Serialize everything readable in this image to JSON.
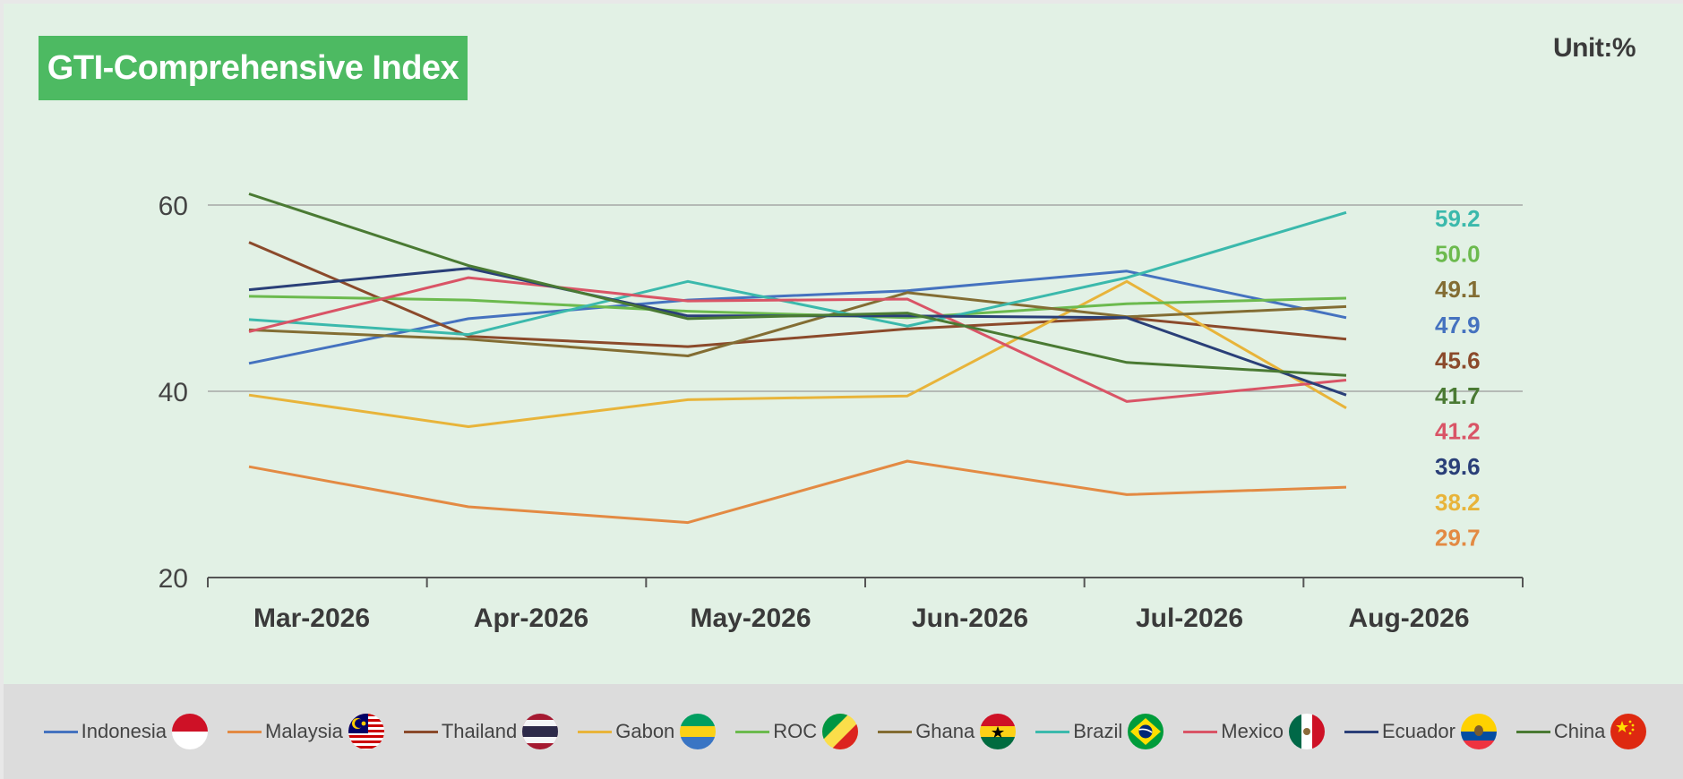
{
  "title": "GTI-Comprehensive Index",
  "unit": "Unit:%",
  "chart_data": {
    "type": "line",
    "title": "GTI-Comprehensive Index",
    "unit": "Unit:%",
    "xlabel": "",
    "ylabel": "",
    "categories": [
      "Mar-2026",
      "Apr-2026",
      "May-2026",
      "Jun-2026",
      "Jul-2026",
      "Aug-2026"
    ],
    "yticks": [
      20,
      40,
      60
    ],
    "ylim": [
      20,
      61
    ],
    "grid": "horizontal at 40 and 60",
    "legend_position": "bottom",
    "series": [
      {
        "name": "Indonesia",
        "color": "#4572bf",
        "values": [
          43.0,
          47.8,
          49.8,
          50.8,
          52.9,
          47.9
        ],
        "end_label": "47.9",
        "flag": "indonesia"
      },
      {
        "name": "Malaysia",
        "color": "#e38a43",
        "values": [
          31.9,
          27.6,
          25.9,
          32.5,
          28.9,
          29.7
        ],
        "end_label": "29.7",
        "flag": "malaysia"
      },
      {
        "name": "Thailand",
        "color": "#8b4a2b",
        "values": [
          56.0,
          45.9,
          44.8,
          46.7,
          47.9,
          45.6
        ],
        "end_label": "45.6",
        "flag": "thailand"
      },
      {
        "name": "Gabon",
        "color": "#e8b43a",
        "values": [
          39.6,
          36.2,
          39.1,
          39.5,
          51.8,
          38.2
        ],
        "end_label": "38.2",
        "flag": "gabon"
      },
      {
        "name": "ROC",
        "color": "#6cba4e",
        "values": [
          50.2,
          49.8,
          48.6,
          47.9,
          49.4,
          50.0
        ],
        "end_label": "50.0",
        "flag": "roc"
      },
      {
        "name": "Ghana",
        "color": "#836d33",
        "values": [
          46.6,
          45.6,
          43.8,
          50.6,
          48.0,
          49.1
        ],
        "end_label": "49.1",
        "flag": "ghana"
      },
      {
        "name": "Brazil",
        "color": "#3bb9ac",
        "values": [
          47.7,
          46.1,
          51.8,
          47.0,
          52.2,
          59.2
        ],
        "end_label": "59.2",
        "flag": "brazil"
      },
      {
        "name": "Mexico",
        "color": "#d95466",
        "values": [
          46.4,
          52.2,
          49.7,
          49.9,
          38.9,
          41.2
        ],
        "end_label": "41.2",
        "flag": "mexico"
      },
      {
        "name": "Ecuador",
        "color": "#2a3f78",
        "values": [
          50.9,
          53.2,
          48.1,
          48.1,
          47.9,
          39.6
        ],
        "end_label": "39.6",
        "flag": "ecuador"
      },
      {
        "name": "China",
        "color": "#4a7a33",
        "values": [
          61.2,
          53.5,
          47.8,
          48.4,
          43.1,
          41.7
        ],
        "end_label": "41.7",
        "flag": "china"
      }
    ]
  }
}
